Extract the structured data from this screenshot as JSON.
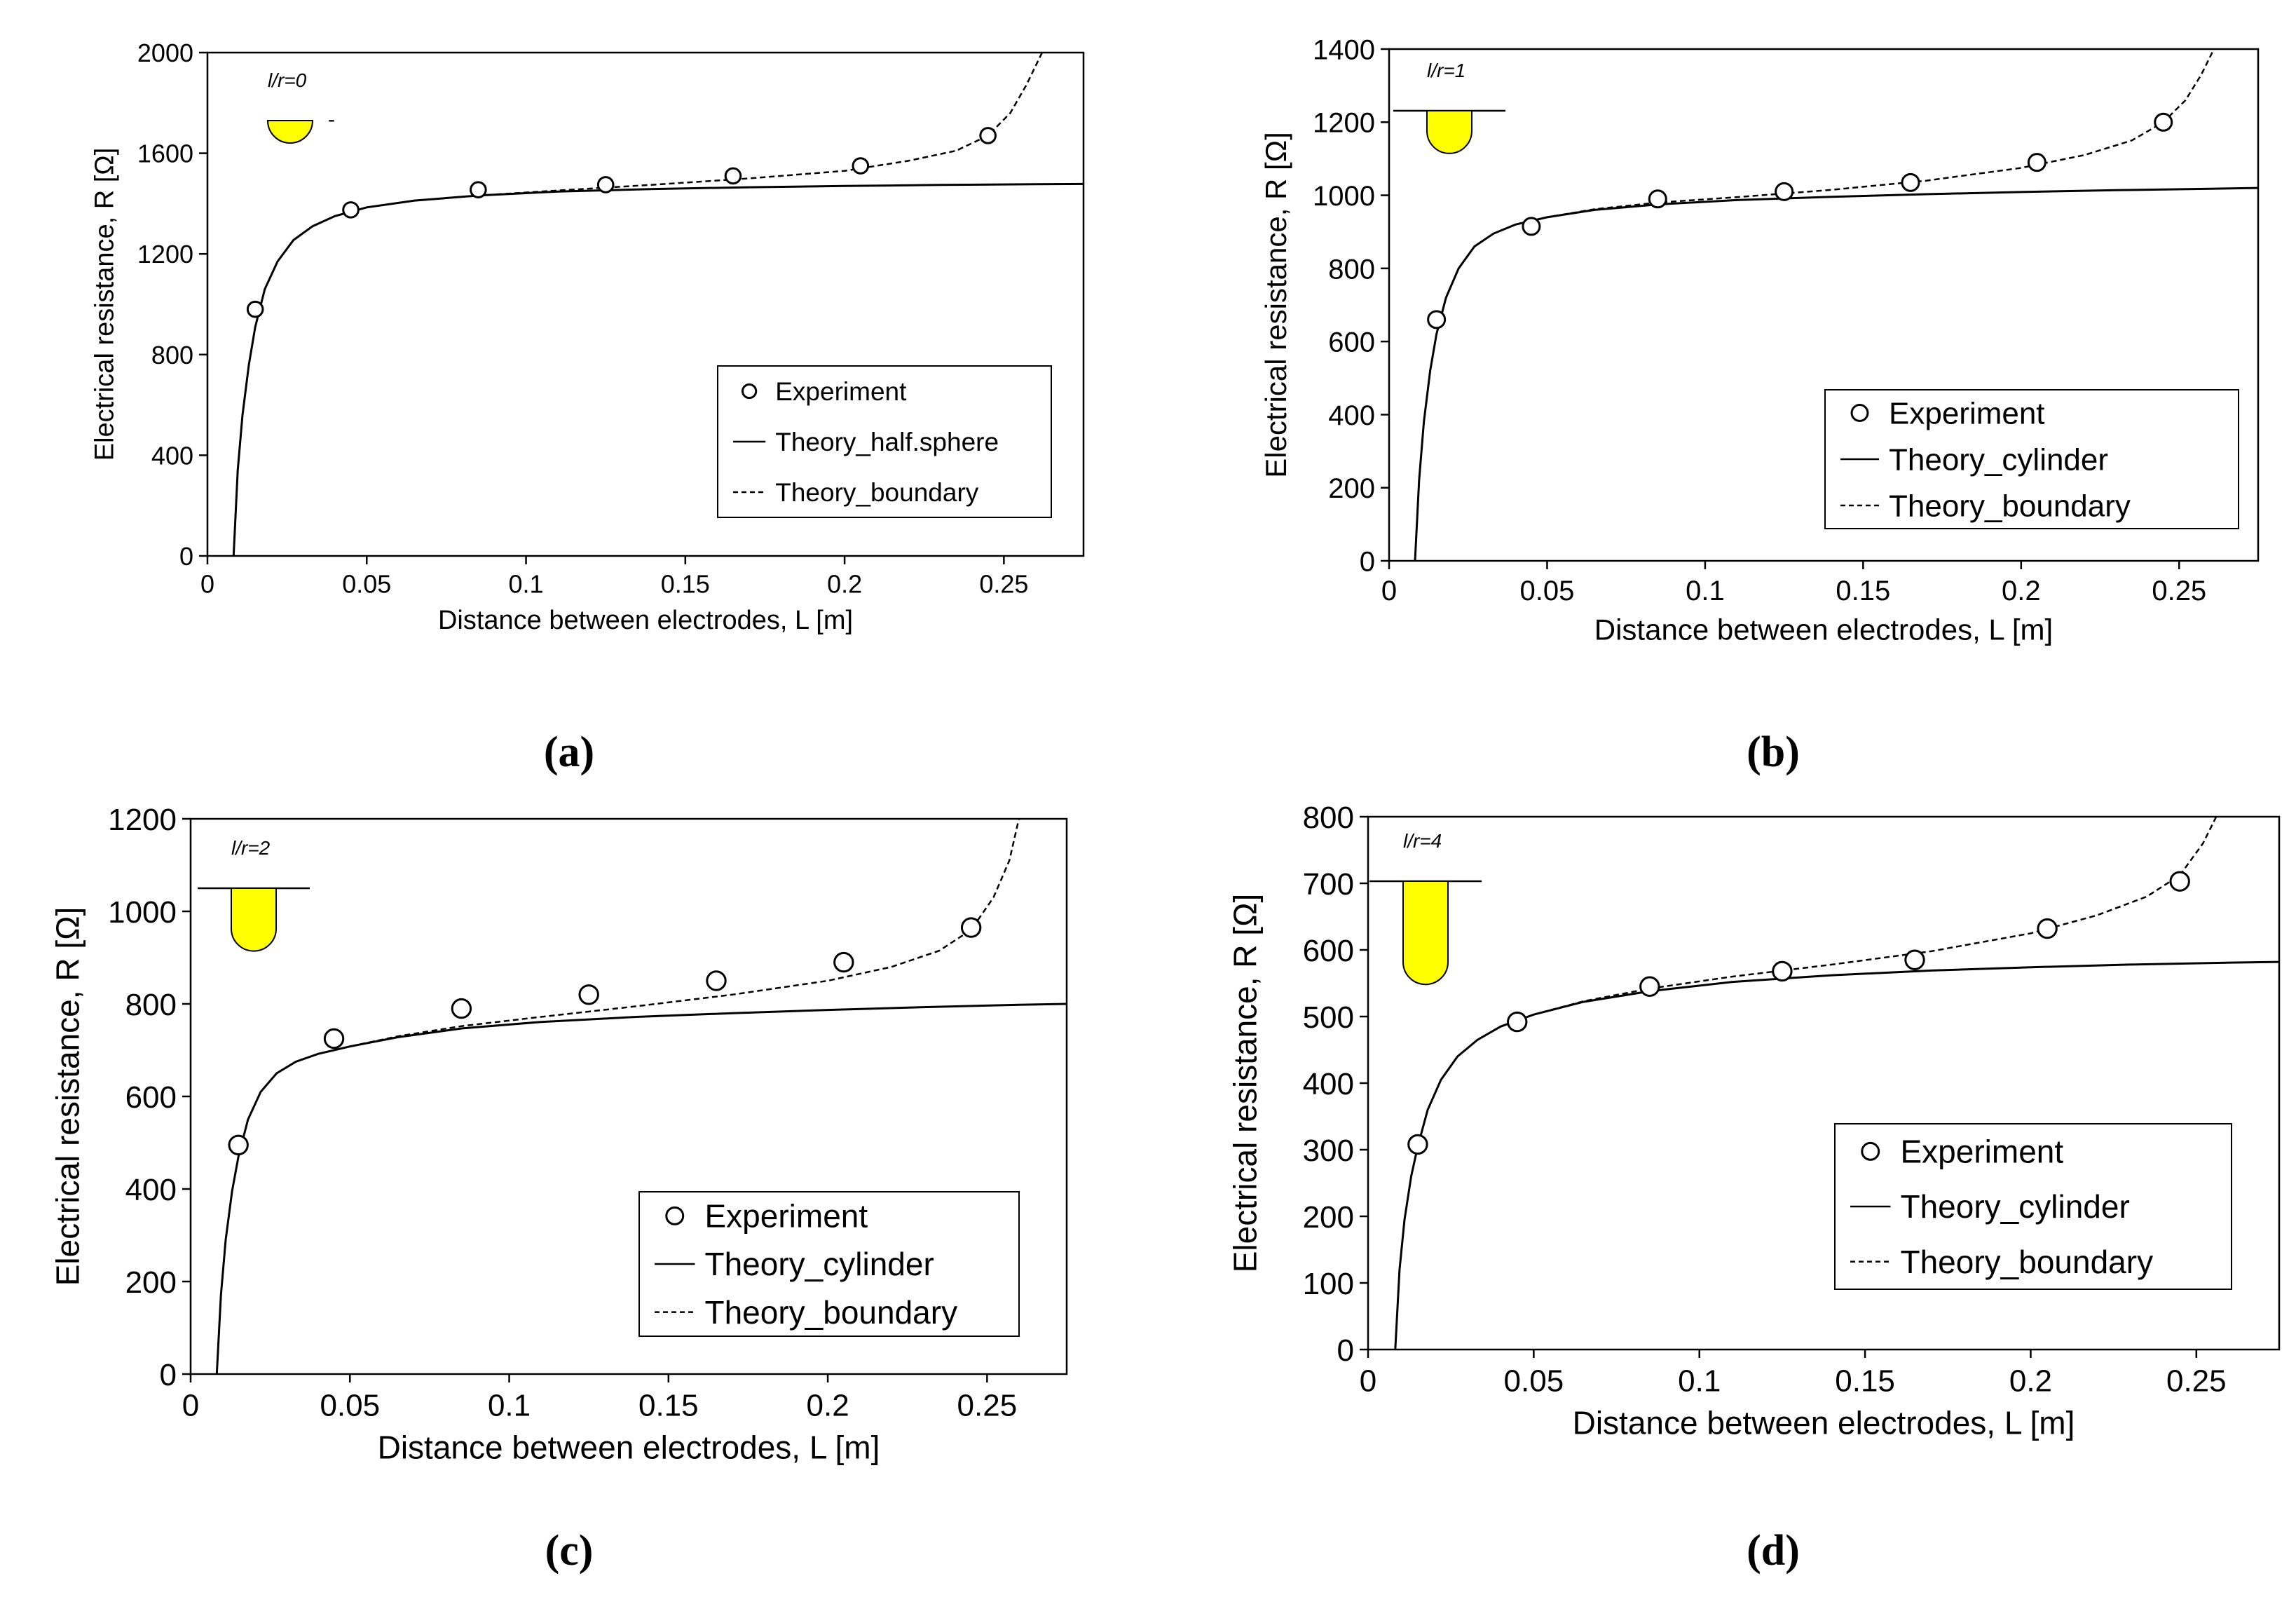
{
  "chart_data": [
    {
      "type": "scatter",
      "panel_label": "(a)",
      "xlabel": "Distance between electrodes, L [m]",
      "ylabel": "Electrical resistance, R [Ω]",
      "xlim": [
        0,
        0.275
      ],
      "ylim": [
        0,
        2000
      ],
      "xticks": [
        0,
        0.05,
        0.1,
        0.15,
        0.2,
        0.25
      ],
      "xtick_labels": [
        "0",
        "0.05",
        "0.1",
        "0.15",
        "0.2",
        "0.25"
      ],
      "yticks": [
        0,
        400,
        800,
        1200,
        1600,
        2000
      ],
      "ytick_labels": [
        "0",
        "400",
        "800",
        "1200",
        "1600",
        "2000"
      ],
      "inset": {
        "ratio_label": "l/r=0",
        "shape": "half-sphere",
        "aspect": 0,
        "note": "-"
      },
      "legend": {
        "position": "center-right",
        "entries": [
          "Experiment",
          "Theory_half.sphere",
          "Theory_boundary"
        ]
      },
      "series": [
        {
          "name": "Experiment",
          "style": "markers",
          "x": [
            0.015,
            0.045,
            0.085,
            0.125,
            0.165,
            0.205,
            0.245
          ],
          "y": [
            980,
            1375,
            1455,
            1475,
            1510,
            1550,
            1670
          ]
        },
        {
          "name": "Theory_half.sphere",
          "style": "solid",
          "x": [
            0.0082,
            0.0095,
            0.011,
            0.013,
            0.015,
            0.018,
            0.022,
            0.027,
            0.033,
            0.04,
            0.05,
            0.065,
            0.085,
            0.11,
            0.14,
            0.17,
            0.2,
            0.23,
            0.26,
            0.275
          ],
          "y": [
            0,
            340,
            560,
            760,
            910,
            1060,
            1170,
            1255,
            1310,
            1350,
            1385,
            1412,
            1432,
            1448,
            1458,
            1465,
            1470,
            1474,
            1477,
            1478
          ]
        },
        {
          "name": "Theory_boundary",
          "style": "dashed",
          "x": [
            0.0082,
            0.0095,
            0.011,
            0.013,
            0.015,
            0.018,
            0.022,
            0.027,
            0.033,
            0.04,
            0.05,
            0.065,
            0.085,
            0.11,
            0.14,
            0.17,
            0.2,
            0.22,
            0.235,
            0.245,
            0.252,
            0.257,
            0.262
          ],
          "y": [
            0,
            340,
            560,
            760,
            910,
            1060,
            1170,
            1255,
            1310,
            1350,
            1385,
            1412,
            1432,
            1452,
            1475,
            1500,
            1530,
            1570,
            1610,
            1670,
            1760,
            1870,
            2000
          ]
        }
      ]
    },
    {
      "type": "scatter",
      "panel_label": "(b)",
      "xlabel": "Distance between electrodes, L [m]",
      "ylabel": "Electrical resistance, R [Ω]",
      "xlim": [
        0,
        0.275
      ],
      "ylim": [
        0,
        1400
      ],
      "xticks": [
        0,
        0.05,
        0.1,
        0.15,
        0.2,
        0.25
      ],
      "xtick_labels": [
        "0",
        "0.05",
        "0.1",
        "0.15",
        "0.2",
        "0.25"
      ],
      "yticks": [
        0,
        200,
        400,
        600,
        800,
        1000,
        1200,
        1400
      ],
      "ytick_labels": [
        "0",
        "200",
        "400",
        "600",
        "800",
        "1000",
        "1200",
        "1400"
      ],
      "inset": {
        "ratio_label": "l/r=1",
        "shape": "cylinder",
        "aspect": 1
      },
      "legend": {
        "position": "bottom-right",
        "entries": [
          "Experiment",
          "Theory_cylinder",
          "Theory_boundary"
        ]
      },
      "series": [
        {
          "name": "Experiment",
          "style": "markers",
          "x": [
            0.015,
            0.045,
            0.085,
            0.125,
            0.165,
            0.205,
            0.245
          ],
          "y": [
            660,
            915,
            990,
            1010,
            1035,
            1090,
            1200
          ]
        },
        {
          "name": "Theory_cylinder",
          "style": "solid",
          "x": [
            0.0082,
            0.0095,
            0.011,
            0.013,
            0.015,
            0.018,
            0.022,
            0.027,
            0.033,
            0.04,
            0.05,
            0.065,
            0.085,
            0.11,
            0.14,
            0.17,
            0.2,
            0.23,
            0.26,
            0.275
          ],
          "y": [
            0,
            220,
            380,
            520,
            620,
            720,
            800,
            860,
            895,
            920,
            940,
            960,
            975,
            987,
            996,
            1003,
            1009,
            1014,
            1018,
            1020
          ]
        },
        {
          "name": "Theory_boundary",
          "style": "dashed",
          "x": [
            0.0082,
            0.0095,
            0.011,
            0.013,
            0.015,
            0.018,
            0.022,
            0.027,
            0.033,
            0.04,
            0.05,
            0.065,
            0.085,
            0.11,
            0.14,
            0.17,
            0.2,
            0.22,
            0.235,
            0.245,
            0.252,
            0.257,
            0.261
          ],
          "y": [
            0,
            220,
            380,
            520,
            620,
            720,
            800,
            860,
            895,
            920,
            940,
            962,
            980,
            995,
            1015,
            1040,
            1075,
            1110,
            1150,
            1200,
            1260,
            1330,
            1400
          ]
        }
      ]
    },
    {
      "type": "scatter",
      "panel_label": "(c)",
      "xlabel": "Distance between electrodes, L [m]",
      "ylabel": "Electrical resistance, R [Ω]",
      "xlim": [
        0,
        0.275
      ],
      "ylim": [
        0,
        1200
      ],
      "xticks": [
        0,
        0.05,
        0.1,
        0.15,
        0.2,
        0.25
      ],
      "xtick_labels": [
        "0",
        "0.05",
        "0.1",
        "0.15",
        "0.2",
        "0.25"
      ],
      "yticks": [
        0,
        200,
        400,
        600,
        800,
        1000,
        1200
      ],
      "ytick_labels": [
        "0",
        "200",
        "400",
        "600",
        "800",
        "1000",
        "1200"
      ],
      "inset": {
        "ratio_label": "l/r=2",
        "shape": "cylinder",
        "aspect": 2
      },
      "legend": {
        "position": "bottom-right",
        "entries": [
          "Experiment",
          "Theory_cylinder",
          "Theory_boundary"
        ]
      },
      "series": [
        {
          "name": "Experiment",
          "style": "markers",
          "x": [
            0.015,
            0.045,
            0.085,
            0.125,
            0.165,
            0.205,
            0.245
          ],
          "y": [
            495,
            725,
            790,
            820,
            850,
            890,
            965
          ]
        },
        {
          "name": "Theory_cylinder",
          "style": "solid",
          "x": [
            0.0082,
            0.0095,
            0.011,
            0.013,
            0.015,
            0.018,
            0.022,
            0.027,
            0.033,
            0.04,
            0.05,
            0.065,
            0.085,
            0.11,
            0.14,
            0.17,
            0.2,
            0.23,
            0.26,
            0.275
          ],
          "y": [
            0,
            170,
            290,
            395,
            470,
            550,
            610,
            650,
            675,
            692,
            708,
            728,
            747,
            761,
            772,
            780,
            787,
            793,
            798,
            800
          ]
        },
        {
          "name": "Theory_boundary",
          "style": "dashed",
          "x": [
            0.0082,
            0.0095,
            0.011,
            0.013,
            0.015,
            0.018,
            0.022,
            0.027,
            0.033,
            0.04,
            0.05,
            0.065,
            0.085,
            0.11,
            0.14,
            0.17,
            0.2,
            0.22,
            0.235,
            0.245,
            0.252,
            0.257,
            0.26
          ],
          "y": [
            0,
            170,
            290,
            395,
            470,
            550,
            610,
            650,
            675,
            692,
            708,
            730,
            752,
            772,
            795,
            820,
            850,
            880,
            915,
            960,
            1030,
            1110,
            1200
          ]
        }
      ]
    },
    {
      "type": "scatter",
      "panel_label": "(d)",
      "xlabel": "Distance between electrodes, L [m]",
      "ylabel": "Electrical resistance, R [Ω]",
      "xlim": [
        0,
        0.275
      ],
      "ylim": [
        0,
        800
      ],
      "xticks": [
        0,
        0.05,
        0.1,
        0.15,
        0.2,
        0.25
      ],
      "xtick_labels": [
        "0",
        "0.05",
        "0.1",
        "0.15",
        "0.2",
        "0.25"
      ],
      "yticks": [
        0,
        100,
        200,
        300,
        400,
        500,
        600,
        700,
        800
      ],
      "ytick_labels": [
        "0",
        "100",
        "200",
        "300",
        "400",
        "500",
        "600",
        "700",
        "800"
      ],
      "inset": {
        "ratio_label": "l/r=4",
        "shape": "cylinder",
        "aspect": 4
      },
      "legend": {
        "position": "center-right",
        "entries": [
          "Experiment",
          "Theory_cylinder",
          "Theory_boundary"
        ]
      },
      "series": [
        {
          "name": "Experiment",
          "style": "markers",
          "x": [
            0.015,
            0.045,
            0.085,
            0.125,
            0.165,
            0.205,
            0.245
          ],
          "y": [
            308,
            492,
            545,
            568,
            585,
            632,
            703
          ]
        },
        {
          "name": "Theory_cylinder",
          "style": "solid",
          "x": [
            0.0082,
            0.0095,
            0.011,
            0.013,
            0.015,
            0.018,
            0.022,
            0.027,
            0.033,
            0.04,
            0.05,
            0.065,
            0.085,
            0.11,
            0.14,
            0.17,
            0.2,
            0.23,
            0.26,
            0.275
          ],
          "y": [
            0,
            120,
            195,
            260,
            305,
            360,
            405,
            440,
            465,
            485,
            503,
            522,
            538,
            552,
            562,
            569,
            574,
            578,
            581,
            582
          ]
        },
        {
          "name": "Theory_boundary",
          "style": "dashed",
          "x": [
            0.0082,
            0.0095,
            0.011,
            0.013,
            0.015,
            0.018,
            0.022,
            0.027,
            0.033,
            0.04,
            0.05,
            0.065,
            0.085,
            0.11,
            0.14,
            0.17,
            0.2,
            0.22,
            0.235,
            0.245,
            0.252,
            0.256
          ],
          "y": [
            0,
            120,
            195,
            260,
            305,
            360,
            405,
            440,
            465,
            485,
            503,
            523,
            542,
            560,
            578,
            598,
            625,
            652,
            680,
            712,
            760,
            800
          ]
        }
      ]
    }
  ]
}
